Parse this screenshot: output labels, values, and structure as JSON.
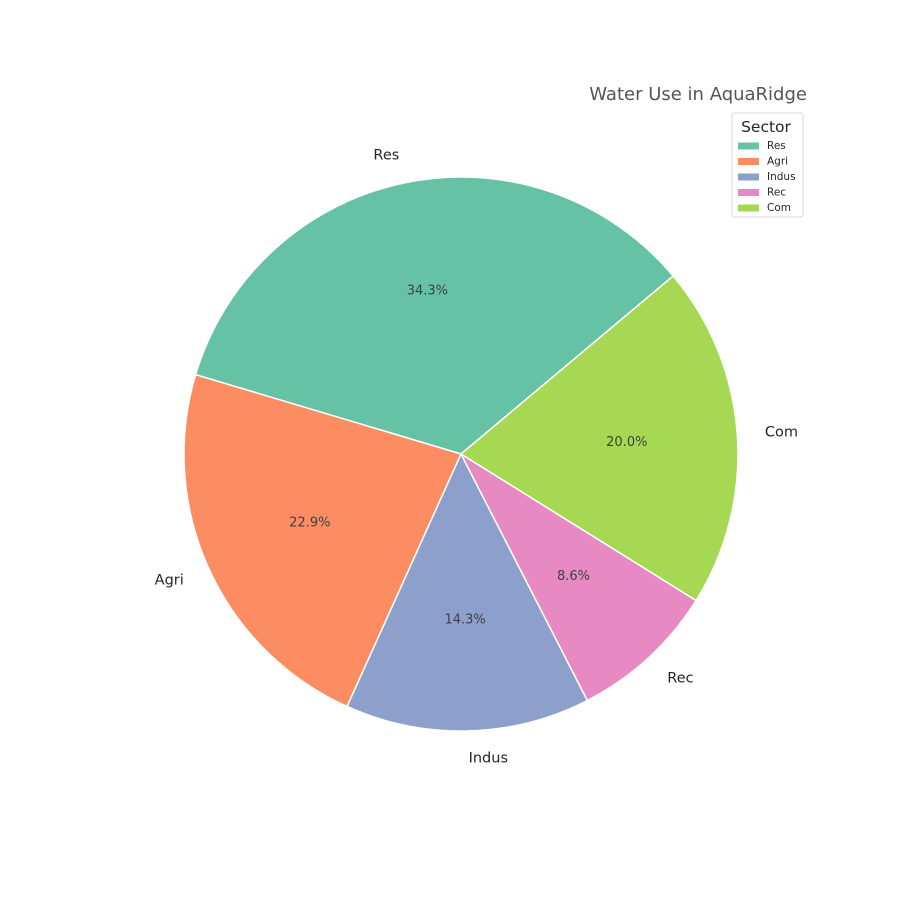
{
  "chart_data": {
    "type": "pie",
    "title": "Water Use in AquaRidge",
    "categories": [
      "Res",
      "Agri",
      "Indus",
      "Rec",
      "Com"
    ],
    "values": [
      34.3,
      22.9,
      14.3,
      8.6,
      20.0
    ],
    "percent_labels": [
      "34.3%",
      "22.9%",
      "14.3%",
      "8.6%",
      "20.0%"
    ],
    "colors": [
      "#66c2a5",
      "#fc8d62",
      "#8da0cb",
      "#e78ac3",
      "#a6d854"
    ],
    "start_angle_deg": 40,
    "direction": "counterclockwise",
    "legend": {
      "title": "Sector",
      "entries": [
        "Res",
        "Agri",
        "Indus",
        "Rec",
        "Com"
      ],
      "placement": "upper-right"
    }
  }
}
